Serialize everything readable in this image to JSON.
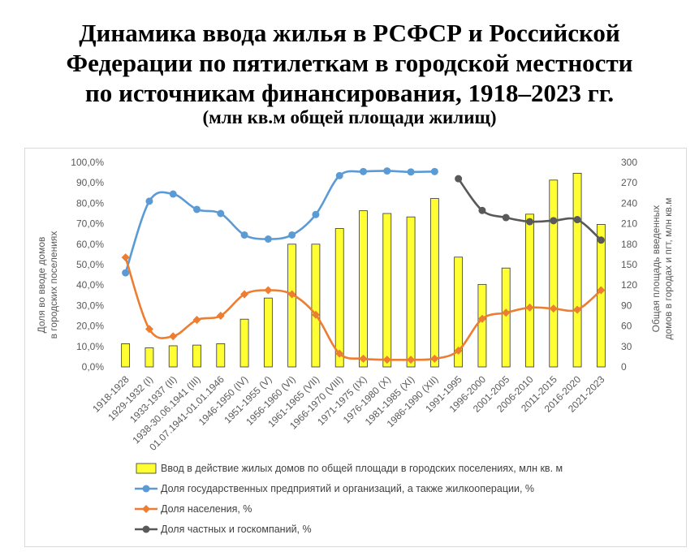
{
  "title_lines": [
    "Динамика ввода жилья в РСФСР и Российской",
    "Федерации по пятилеткам в городской местности",
    "по источникам финансирования, 1918–2023 гг."
  ],
  "subtitle": "(млн кв.м общей площади жилищ)",
  "chart_data": {
    "type": "bar",
    "categories": [
      "1918-1928",
      "1929-1932 (I)",
      "1933-1937 (II)",
      "1938-30.06.1941 (III)",
      "01.07.1941-01.01.1946",
      "1946-1950 (IV)",
      "1951-1955 (V)",
      "1956-1960 (VI)",
      "1961-1965 (VII)",
      "1966-1970 (VIII)",
      "1971-1975 (IX)",
      "1976-1980 (X)",
      "1981-1985 (XI)",
      "1986-1990 (XII)",
      "1991-1995",
      "1996-2000",
      "2001-2005",
      "2006-2010",
      "2011-2015",
      "2016-2020",
      "2021-2023"
    ],
    "left_axis": {
      "title_lines": [
        "Доля во вводе домов",
        "в городских поселениях"
      ],
      "ylim": [
        0,
        100
      ],
      "ticks": [
        "0,0%",
        "10,0%",
        "20,0%",
        "30,0%",
        "40,0%",
        "50,0%",
        "60,0%",
        "70,0%",
        "80,0%",
        "90,0%",
        "100,0%"
      ]
    },
    "right_axis": {
      "title_lines": [
        "Общая площадь введенных",
        "домов в городах и пгт, млн кв.м"
      ],
      "ylim": [
        0,
        300
      ],
      "ticks": [
        "0",
        "30",
        "60",
        "90",
        "120",
        "150",
        "180",
        "210",
        "240",
        "270",
        "300"
      ]
    },
    "series": [
      {
        "name": "Ввод в действие жилых домов по общей площади в городских поселениях, млн кв. м",
        "type": "bar",
        "axis": "right",
        "color": "#ffff33",
        "values": [
          34,
          28,
          31,
          32,
          34,
          70,
          101,
          180,
          180,
          203,
          229,
          225,
          220,
          247,
          161,
          121,
          145,
          224,
          274,
          284,
          209
        ]
      },
      {
        "name": "Доля государственных предприятий и организаций, а также жилкооперации, %",
        "type": "line",
        "axis": "left",
        "color": "#5b9bd5",
        "values": [
          46.0,
          81.0,
          84.5,
          77.0,
          75.0,
          64.5,
          62.5,
          64.5,
          74.5,
          93.5,
          95.5,
          95.8,
          95.3,
          95.5,
          null,
          null,
          null,
          null,
          null,
          null,
          null
        ]
      },
      {
        "name": "Доля населения, %",
        "type": "line",
        "axis": "left",
        "color": "#ed7d31",
        "values": [
          53.5,
          18.5,
          15.0,
          23.0,
          25.0,
          35.5,
          37.5,
          35.5,
          25.5,
          6.5,
          4.0,
          3.5,
          3.5,
          4.0,
          8.0,
          23.5,
          26.5,
          29.0,
          28.5,
          28.0,
          37.5
        ]
      },
      {
        "name": "Доля частных и госкомпаний, %",
        "type": "line",
        "axis": "left",
        "color": "#595959",
        "values": [
          null,
          null,
          null,
          null,
          null,
          null,
          null,
          null,
          null,
          null,
          null,
          null,
          null,
          null,
          92.0,
          76.5,
          73.0,
          71.0,
          71.5,
          72.0,
          62.0
        ]
      }
    ],
    "grid": false,
    "legend_position": "bottom"
  }
}
